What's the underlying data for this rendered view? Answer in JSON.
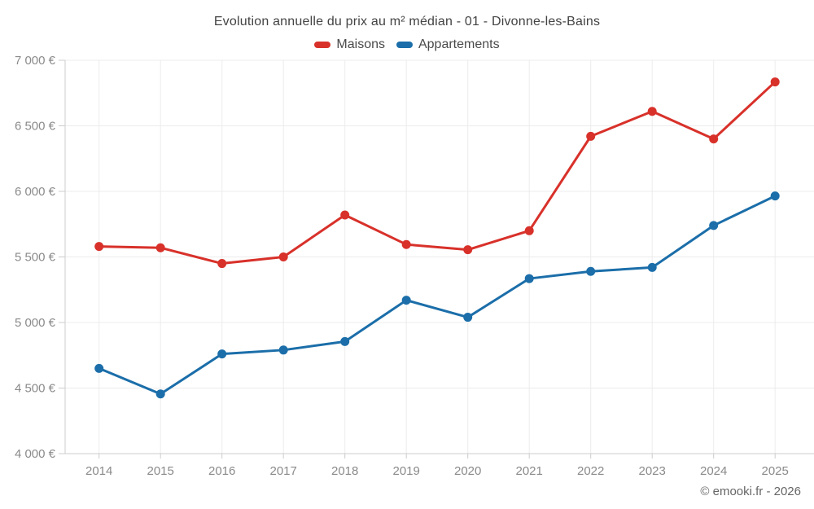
{
  "header": {
    "title": "Evolution annuelle du prix au m² médian - 01 - Divonne-les-Bains"
  },
  "legend": {
    "items": [
      {
        "label": "Maisons",
        "color": "#d8312a"
      },
      {
        "label": "Appartements",
        "color": "#1b6ea9"
      }
    ]
  },
  "footer": {
    "credit": "© emooki.fr - 2026"
  },
  "colors": {
    "maisons": "#d8312a",
    "appartements": "#1b6ea9",
    "grid": "#ececec",
    "axis": "#cccccc",
    "tick_text": "#8a8a8a"
  },
  "chart_data": {
    "type": "line",
    "title": "Evolution annuelle du prix au m² médian - 01 - Divonne-les-Bains",
    "categories": [
      "2014",
      "2015",
      "2016",
      "2017",
      "2018",
      "2019",
      "2020",
      "2021",
      "2022",
      "2023",
      "2024",
      "2025"
    ],
    "series": [
      {
        "name": "Maisons",
        "color": "#d8312a",
        "values": [
          5580,
          5570,
          5450,
          5500,
          5820,
          5595,
          5555,
          5700,
          6420,
          6610,
          6400,
          6835
        ]
      },
      {
        "name": "Appartements",
        "color": "#1b6ea9",
        "values": [
          4650,
          4455,
          4760,
          4790,
          4855,
          5170,
          5040,
          5335,
          5390,
          5420,
          5740,
          5965
        ]
      }
    ],
    "xlabel": "",
    "ylabel": "",
    "ylim": [
      4000,
      7000
    ],
    "y_tick_step": 500,
    "y_tick_labels": [
      "4 000 €",
      "4 500 €",
      "5 000 €",
      "5 500 €",
      "6 000 €",
      "6 500 €",
      "7 000 €"
    ],
    "grid": true,
    "legend_position": "top"
  }
}
